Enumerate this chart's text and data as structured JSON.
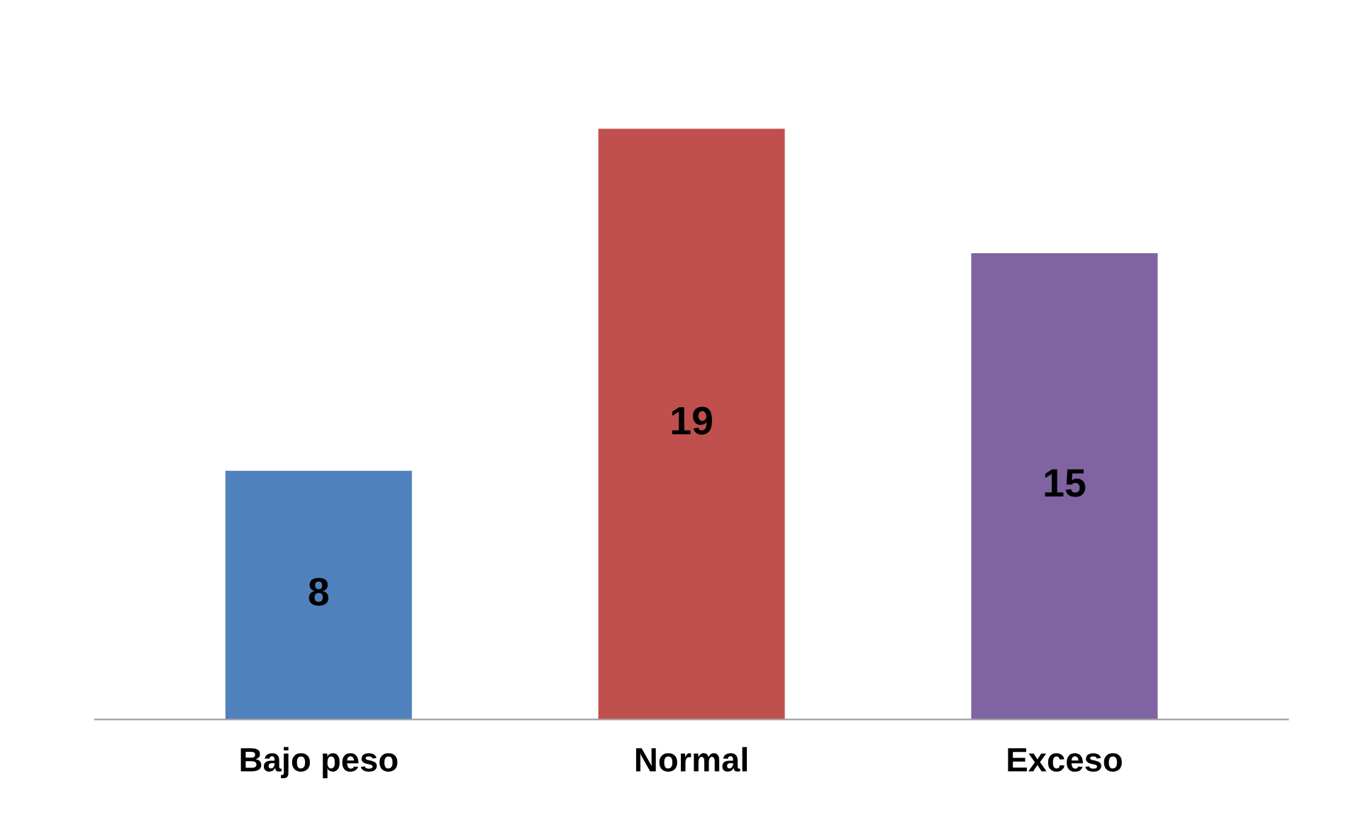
{
  "chart_data": {
    "type": "bar",
    "categories": [
      "Bajo peso",
      "Normal",
      "Exceso"
    ],
    "values": [
      8,
      19,
      15
    ],
    "colors": [
      "#4f81bd",
      "#c0504d",
      "#8064a2"
    ],
    "data_labels": true,
    "grid": false,
    "legend": false
  }
}
